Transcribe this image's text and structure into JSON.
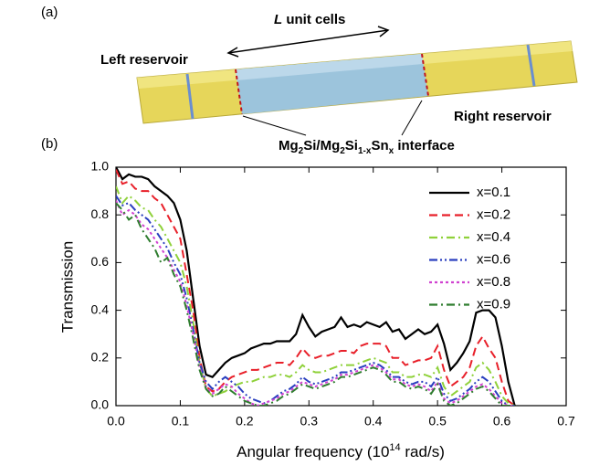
{
  "panel_a": {
    "label": "(a)",
    "length_label": [
      "L",
      "unit cells"
    ],
    "left_label": "Left reservoir",
    "right_label": "Right reservoir",
    "interface_label": [
      "Mg",
      "2",
      "Si/Mg",
      "2",
      "Si",
      "1-x",
      "Sn",
      "x",
      " interface"
    ]
  },
  "chart_data": {
    "type": "line",
    "title": "(b)",
    "x_label": [
      "Angular frequency (10",
      "14",
      " rad/s)"
    ],
    "y_label": "Transmission",
    "xlim": [
      0,
      0.7
    ],
    "ylim": [
      0,
      1
    ],
    "xticks": [
      {
        "value": 0,
        "label": "0.0"
      },
      0.1,
      0.2,
      0.3,
      0.4,
      0.5,
      0.6,
      0.7
    ],
    "yticks": [
      {
        "value": 0,
        "label": "0.0"
      },
      0.2,
      0.4,
      0.6,
      0.8,
      {
        "value": 1,
        "label": "1.0"
      }
    ],
    "legend": "upper right",
    "x": [
      0,
      0.01,
      0.02,
      0.03,
      0.04,
      0.05,
      0.06,
      0.07,
      0.08,
      0.09,
      0.1,
      0.11,
      0.12,
      0.13,
      0.14,
      0.15,
      0.16,
      0.17,
      0.18,
      0.19,
      0.2,
      0.21,
      0.22,
      0.23,
      0.24,
      0.25,
      0.26,
      0.27,
      0.28,
      0.29,
      0.3,
      0.31,
      0.32,
      0.33,
      0.34,
      0.35,
      0.36,
      0.37,
      0.38,
      0.39,
      0.4,
      0.41,
      0.42,
      0.43,
      0.44,
      0.45,
      0.46,
      0.47,
      0.48,
      0.49,
      0.5,
      0.51,
      0.52,
      0.53,
      0.54,
      0.55,
      0.56,
      0.57,
      0.58,
      0.59,
      0.6,
      0.61,
      0.62
    ],
    "series": [
      {
        "name": "x=0.1",
        "color": "#000000",
        "style": "solid",
        "values": [
          1.0,
          0.95,
          0.97,
          0.96,
          0.96,
          0.95,
          0.92,
          0.9,
          0.88,
          0.85,
          0.78,
          0.65,
          0.45,
          0.25,
          0.13,
          0.12,
          0.15,
          0.18,
          0.2,
          0.21,
          0.22,
          0.24,
          0.25,
          0.26,
          0.26,
          0.27,
          0.27,
          0.27,
          0.3,
          0.38,
          0.33,
          0.29,
          0.31,
          0.32,
          0.33,
          0.37,
          0.33,
          0.34,
          0.33,
          0.35,
          0.34,
          0.33,
          0.35,
          0.31,
          0.32,
          0.28,
          0.3,
          0.32,
          0.3,
          0.31,
          0.34,
          0.26,
          0.15,
          0.18,
          0.22,
          0.27,
          0.39,
          0.4,
          0.4,
          0.37,
          0.25,
          0.1,
          0
        ]
      },
      {
        "name": "x=0.2",
        "color": "#e8202a",
        "style": "dash",
        "values": [
          0.99,
          0.93,
          0.94,
          0.91,
          0.9,
          0.9,
          0.87,
          0.85,
          0.8,
          0.75,
          0.7,
          0.55,
          0.4,
          0.2,
          0.08,
          0.06,
          0.07,
          0.1,
          0.12,
          0.13,
          0.14,
          0.15,
          0.15,
          0.16,
          0.17,
          0.18,
          0.18,
          0.17,
          0.2,
          0.24,
          0.21,
          0.2,
          0.21,
          0.21,
          0.22,
          0.23,
          0.23,
          0.22,
          0.25,
          0.26,
          0.26,
          0.26,
          0.25,
          0.2,
          0.2,
          0.17,
          0.18,
          0.19,
          0.19,
          0.2,
          0.25,
          0.15,
          0.08,
          0.1,
          0.12,
          0.16,
          0.25,
          0.29,
          0.24,
          0.2,
          0.1,
          0.02,
          0
        ]
      },
      {
        "name": "x=0.4",
        "color": "#8fd13a",
        "style": "dashdot",
        "values": [
          0.92,
          0.85,
          0.88,
          0.86,
          0.83,
          0.82,
          0.78,
          0.75,
          0.7,
          0.65,
          0.6,
          0.5,
          0.35,
          0.18,
          0.07,
          0.04,
          0.05,
          0.06,
          0.08,
          0.09,
          0.1,
          0.1,
          0.11,
          0.12,
          0.12,
          0.13,
          0.13,
          0.12,
          0.14,
          0.17,
          0.15,
          0.14,
          0.14,
          0.15,
          0.16,
          0.17,
          0.17,
          0.17,
          0.18,
          0.19,
          0.2,
          0.19,
          0.18,
          0.14,
          0.14,
          0.12,
          0.12,
          0.13,
          0.13,
          0.12,
          0.16,
          0.08,
          0.04,
          0.06,
          0.08,
          0.1,
          0.16,
          0.18,
          0.15,
          0.1,
          0.04,
          0.01,
          0
        ]
      },
      {
        "name": "x=0.6",
        "color": "#2a3fbf",
        "style": "dashdotdot",
        "values": [
          0.88,
          0.84,
          0.85,
          0.82,
          0.8,
          0.78,
          0.74,
          0.7,
          0.66,
          0.6,
          0.55,
          0.45,
          0.32,
          0.18,
          0.1,
          0.07,
          0.1,
          0.12,
          0.1,
          0.08,
          0.05,
          0.03,
          0.02,
          0.01,
          0.02,
          0.04,
          0.06,
          0.07,
          0.09,
          0.12,
          0.1,
          0.09,
          0.1,
          0.11,
          0.12,
          0.14,
          0.14,
          0.15,
          0.16,
          0.17,
          0.18,
          0.17,
          0.15,
          0.12,
          0.12,
          0.1,
          0.09,
          0.1,
          0.1,
          0.08,
          0.12,
          0.05,
          0.02,
          0.03,
          0.05,
          0.07,
          0.1,
          0.12,
          0.1,
          0.06,
          0.02,
          0,
          0
        ]
      },
      {
        "name": "x=0.8",
        "color": "#d042d0",
        "style": "dot",
        "values": [
          0.86,
          0.8,
          0.82,
          0.8,
          0.76,
          0.74,
          0.7,
          0.66,
          0.62,
          0.57,
          0.52,
          0.42,
          0.3,
          0.16,
          0.08,
          0.05,
          0.07,
          0.09,
          0.08,
          0.05,
          0.03,
          0.01,
          0,
          0.01,
          0.02,
          0.03,
          0.05,
          0.06,
          0.08,
          0.1,
          0.09,
          0.08,
          0.09,
          0.1,
          0.11,
          0.13,
          0.13,
          0.14,
          0.15,
          0.16,
          0.17,
          0.16,
          0.14,
          0.11,
          0.11,
          0.09,
          0.08,
          0.09,
          0.08,
          0.06,
          0.1,
          0.03,
          0.01,
          0.02,
          0.04,
          0.06,
          0.08,
          0.09,
          0.07,
          0.04,
          0.01,
          0,
          0
        ]
      },
      {
        "name": "x=0.9",
        "color": "#2f7d2f",
        "style": "dashdot",
        "values": [
          0.85,
          0.82,
          0.78,
          0.8,
          0.74,
          0.7,
          0.66,
          0.6,
          0.62,
          0.55,
          0.5,
          0.4,
          0.28,
          0.15,
          0.07,
          0.04,
          0.05,
          0.08,
          0.06,
          0.04,
          0.02,
          0.01,
          0,
          0,
          0.01,
          0.02,
          0.04,
          0.05,
          0.07,
          0.09,
          0.08,
          0.07,
          0.08,
          0.09,
          0.1,
          0.12,
          0.12,
          0.13,
          0.14,
          0.15,
          0.16,
          0.15,
          0.13,
          0.1,
          0.1,
          0.08,
          0.07,
          0.08,
          0.07,
          0.05,
          0.09,
          0.02,
          0,
          0.01,
          0.03,
          0.05,
          0.07,
          0.08,
          0.06,
          0.03,
          0,
          0,
          0
        ]
      }
    ]
  }
}
